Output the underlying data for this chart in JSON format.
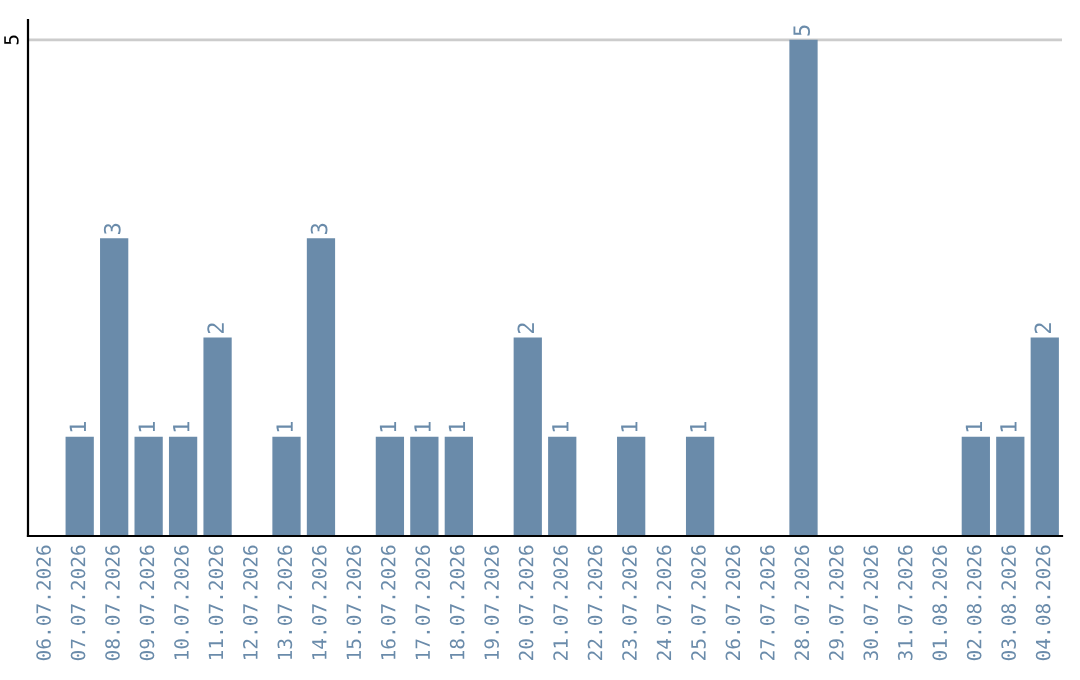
{
  "chart_data": {
    "type": "bar",
    "categories": [
      "06.07.2026",
      "07.07.2026",
      "08.07.2026",
      "09.07.2026",
      "10.07.2026",
      "11.07.2026",
      "12.07.2026",
      "13.07.2026",
      "14.07.2026",
      "15.07.2026",
      "16.07.2026",
      "17.07.2026",
      "18.07.2026",
      "19.07.2026",
      "20.07.2026",
      "21.07.2026",
      "22.07.2026",
      "23.07.2026",
      "24.07.2026",
      "25.07.2026",
      "26.07.2026",
      "27.07.2026",
      "28.07.2026",
      "29.07.2026",
      "30.07.2026",
      "31.07.2026",
      "01.08.2026",
      "02.08.2026",
      "03.08.2026",
      "04.08.2026"
    ],
    "values": [
      0,
      1,
      3,
      1,
      1,
      2,
      0,
      1,
      3,
      0,
      1,
      1,
      1,
      0,
      2,
      1,
      0,
      1,
      0,
      1,
      0,
      0,
      5,
      0,
      0,
      0,
      0,
      1,
      1,
      2
    ],
    "value_labels": [
      null,
      "1",
      "3",
      "1",
      "1",
      "2",
      null,
      "1",
      "3",
      null,
      "1",
      "1",
      "1",
      null,
      "2",
      "1",
      null,
      "1",
      null,
      "1",
      null,
      null,
      "5",
      null,
      null,
      null,
      null,
      "1",
      "1",
      "2"
    ],
    "color": "#6a8baa",
    "ylim": [
      0,
      5.2
    ],
    "yticks": [
      5
    ],
    "grid": "y"
  }
}
